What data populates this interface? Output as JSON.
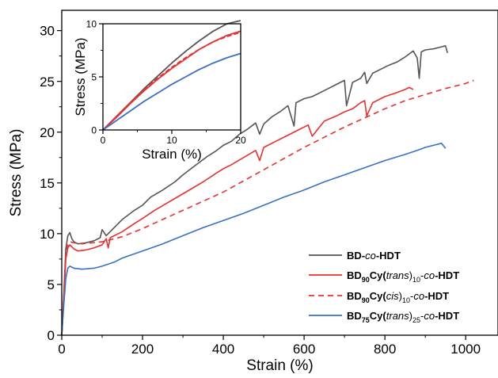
{
  "chart_data": [
    {
      "type": "line",
      "xlabel": "Strain (%)",
      "ylabel": "Stress (MPa)",
      "xlim": [
        0,
        1080
      ],
      "ylim": [
        0,
        32
      ],
      "xticks": [
        "0",
        "200",
        "400",
        "600",
        "800",
        "1000"
      ],
      "yticks": [
        "0",
        "5",
        "10",
        "15",
        "20",
        "25",
        "30"
      ],
      "grid": false,
      "legend_position": "bottom-right",
      "series": [
        {
          "key": "bd",
          "legend": {
            "pre": "BD-",
            "it1": "co",
            "post1": "-HDT"
          },
          "color": "#555555",
          "dash": "solid",
          "x": [
            0,
            5,
            10,
            15,
            20,
            25,
            30,
            40,
            60,
            80,
            95,
            100,
            110,
            130,
            150,
            180,
            200,
            220,
            250,
            280,
            300,
            330,
            360,
            380,
            400,
            420,
            440,
            460,
            480,
            490,
            500,
            520,
            540,
            560,
            575,
            580,
            600,
            620,
            640,
            660,
            680,
            700,
            705,
            720,
            740,
            750,
            755,
            770,
            790,
            810,
            830,
            850,
            860,
            870,
            880,
            885,
            890,
            900,
            920,
            940,
            950,
            955
          ],
          "y": [
            0,
            4,
            8.5,
            9.8,
            10.1,
            9.5,
            9.2,
            9.0,
            9.1,
            9.3,
            9.6,
            10.4,
            9.8,
            10.6,
            11.4,
            12.3,
            12.8,
            13.6,
            14.3,
            15.1,
            15.8,
            16.7,
            17.6,
            18.1,
            18.7,
            19.1,
            19.8,
            20.3,
            20.9,
            19.8,
            20.8,
            21.5,
            22.0,
            22.6,
            20.6,
            22.9,
            23.3,
            23.5,
            23.9,
            24.3,
            24.7,
            25.1,
            22.6,
            24.9,
            25.3,
            25.9,
            24.8,
            25.8,
            26.2,
            26.6,
            26.9,
            27.4,
            27.7,
            28.0,
            27.3,
            25.3,
            27.9,
            28.1,
            28.2,
            28.4,
            28.5,
            27.8
          ]
        },
        {
          "key": "trans10",
          "legend": {
            "pre": "BD",
            "sub1": "90",
            "mid": "Cy(",
            "it1": "trans",
            "mid2": ")",
            "sub2": "10",
            "post0": "-",
            "it2": "co",
            "post1": "-HDT"
          },
          "color": "#e8312f",
          "dash": "solid",
          "x": [
            0,
            5,
            10,
            15,
            20,
            30,
            40,
            60,
            80,
            100,
            110,
            115,
            120,
            150,
            180,
            200,
            230,
            260,
            290,
            320,
            350,
            380,
            400,
            420,
            450,
            480,
            490,
            500,
            530,
            560,
            590,
            610,
            620,
            650,
            680,
            700,
            720,
            740,
            750,
            755,
            770,
            800,
            830,
            850,
            860,
            870
          ],
          "y": [
            0,
            3.5,
            7.5,
            8.6,
            8.9,
            8.5,
            8.3,
            8.4,
            8.6,
            8.9,
            9.5,
            8.6,
            9.6,
            10.2,
            11.0,
            11.5,
            12.3,
            13.0,
            13.7,
            14.4,
            15.1,
            15.9,
            16.4,
            16.8,
            17.5,
            18.2,
            17.2,
            18.5,
            19.1,
            19.7,
            20.3,
            20.7,
            19.6,
            21.1,
            21.6,
            22.0,
            22.3,
            22.9,
            23.1,
            21.6,
            22.9,
            23.5,
            23.9,
            24.2,
            24.4,
            24.2
          ]
        },
        {
          "key": "cis10",
          "legend": {
            "pre": "BD",
            "sub1": "90",
            "mid": "Cy(",
            "it1": "cis",
            "mid2": ")",
            "sub2": "10",
            "post0": "-",
            "it2": "co",
            "post1": "-HDT"
          },
          "color": "#e8312f",
          "dash": "dashed",
          "x": [
            0,
            5,
            10,
            15,
            20,
            30,
            50,
            100,
            150,
            200,
            250,
            300,
            350,
            400,
            450,
            500,
            550,
            600,
            650,
            700,
            750,
            800,
            850,
            900,
            950,
            1000,
            1020
          ],
          "y": [
            0,
            4,
            8.0,
            8.9,
            9.2,
            9.1,
            9.0,
            9.2,
            9.7,
            10.5,
            11.4,
            12.3,
            13.2,
            14.1,
            15.2,
            16.3,
            17.4,
            18.5,
            19.5,
            20.5,
            21.4,
            22.3,
            23.1,
            23.7,
            24.3,
            24.8,
            25.1
          ]
        },
        {
          "key": "trans25",
          "legend": {
            "pre": "BD",
            "sub1": "75",
            "mid": "Cy(",
            "it1": "trans",
            "mid2": ")",
            "sub2": "25",
            "post0": "-",
            "it2": "co",
            "post1": "-HDT"
          },
          "color": "#3a6fc4",
          "dash": "solid",
          "x": [
            0,
            5,
            10,
            15,
            20,
            30,
            50,
            80,
            100,
            130,
            150,
            200,
            250,
            300,
            350,
            400,
            450,
            500,
            550,
            600,
            650,
            700,
            750,
            800,
            850,
            880,
            900,
            920,
            940,
            950
          ],
          "y": [
            0,
            3,
            5.6,
            6.6,
            6.8,
            6.6,
            6.5,
            6.6,
            6.8,
            7.2,
            7.6,
            8.3,
            9.0,
            9.8,
            10.6,
            11.3,
            12.0,
            12.8,
            13.6,
            14.3,
            15.1,
            15.8,
            16.5,
            17.2,
            17.8,
            18.2,
            18.5,
            18.7,
            18.9,
            18.4
          ]
        }
      ]
    },
    {
      "type": "line",
      "position": "inset",
      "xlabel": "Strain (%)",
      "ylabel": "Stress (MPa)",
      "xlim": [
        0,
        20
      ],
      "ylim": [
        0,
        10
      ],
      "xticks": [
        "0",
        "10",
        "20"
      ],
      "yticks": [
        "0",
        "5",
        "10"
      ],
      "grid": false,
      "series": [
        {
          "key": "bd",
          "color": "#555555",
          "dash": "solid",
          "x": [
            0,
            2,
            4,
            6,
            8,
            10,
            12,
            14,
            16,
            18,
            20
          ],
          "y": [
            0,
            1.3,
            2.6,
            3.9,
            5.1,
            6.3,
            7.4,
            8.4,
            9.3,
            10.0,
            10.3
          ]
        },
        {
          "key": "trans10",
          "color": "#e8312f",
          "dash": "solid",
          "x": [
            0,
            2,
            4,
            6,
            8,
            10,
            12,
            14,
            16,
            18,
            20
          ],
          "y": [
            0,
            1.2,
            2.5,
            3.7,
            4.8,
            5.8,
            6.7,
            7.6,
            8.3,
            8.9,
            9.3
          ]
        },
        {
          "key": "cis10",
          "color": "#e8312f",
          "dash": "dashed",
          "x": [
            0,
            2,
            4,
            6,
            8,
            10,
            12,
            14,
            16,
            18,
            20
          ],
          "y": [
            0,
            1.3,
            2.6,
            3.8,
            4.9,
            5.9,
            6.8,
            7.6,
            8.3,
            8.8,
            9.2
          ]
        },
        {
          "key": "trans25",
          "color": "#3a6fc4",
          "dash": "solid",
          "x": [
            0,
            2,
            4,
            6,
            8,
            10,
            12,
            14,
            16,
            18,
            20
          ],
          "y": [
            0,
            0.9,
            1.8,
            2.7,
            3.5,
            4.3,
            5.0,
            5.7,
            6.3,
            6.8,
            7.2
          ]
        }
      ]
    }
  ]
}
